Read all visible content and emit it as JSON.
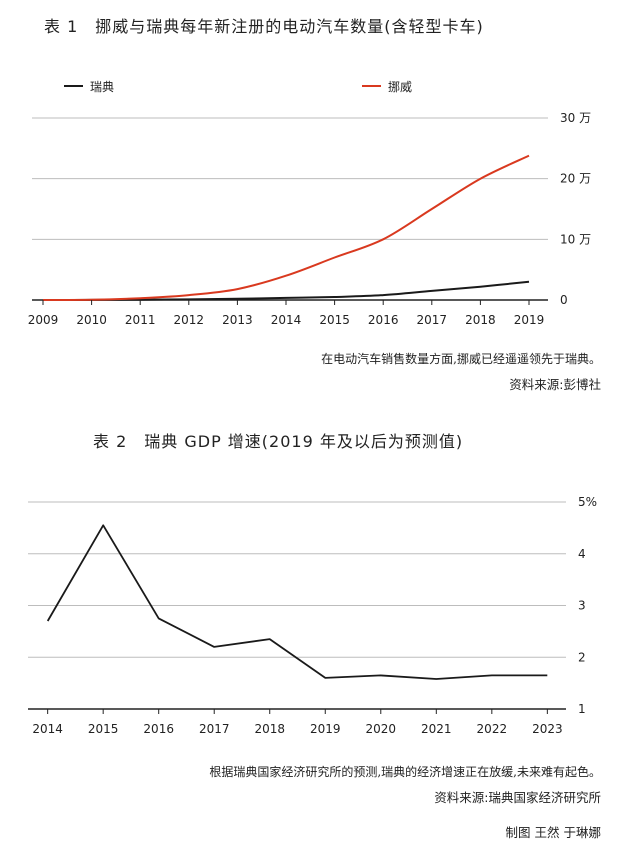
{
  "chart_data": [
    {
      "type": "line",
      "title": "表 1　挪威与瑞典每年新注册的电动汽车数量(含轻型卡车)",
      "x": [
        2009,
        2010,
        2011,
        2012,
        2013,
        2014,
        2015,
        2016,
        2017,
        2018,
        2019
      ],
      "xlim": [
        2009,
        2019
      ],
      "ylim": [
        0,
        300000
      ],
      "y_ticks": [
        0,
        100000,
        200000,
        300000
      ],
      "y_tick_labels": [
        "0",
        "10 万",
        "20 万",
        "30 万"
      ],
      "legend_position": "top",
      "series": [
        {
          "name": "瑞典",
          "color": "#1a1a1a",
          "values": [
            0,
            100,
            500,
            1000,
            2000,
            3500,
            5000,
            8000,
            15000,
            22000,
            30000
          ]
        },
        {
          "name": "挪威",
          "color": "#d9391f",
          "values": [
            0,
            500,
            3000,
            8000,
            18000,
            40000,
            70000,
            100000,
            150000,
            200000,
            238000
          ]
        }
      ],
      "note": "在电动汽车销售数量方面,挪威已经遥遥领先于瑞典。",
      "source": "资料来源:彭博社"
    },
    {
      "type": "line",
      "title": "表 2　瑞典 GDP 增速(2019 年及以后为预测值)",
      "x": [
        2014,
        2015,
        2016,
        2017,
        2018,
        2019,
        2020,
        2021,
        2022,
        2023
      ],
      "xlim": [
        2013.7,
        2023.3
      ],
      "ylim": [
        1,
        5
      ],
      "y_ticks": [
        1,
        2,
        3,
        4,
        5
      ],
      "y_tick_labels": [
        "1",
        "2",
        "3",
        "4",
        "5%"
      ],
      "series": [
        {
          "name": "瑞典 GDP 增速",
          "color": "#1a1a1a",
          "values": [
            2.7,
            4.55,
            2.75,
            2.2,
            2.35,
            1.6,
            1.65,
            1.58,
            1.65,
            1.65
          ]
        }
      ],
      "note": "根据瑞典国家经济研究所的预测,瑞典的经济增速正在放缓,未来难有起色。",
      "source": "资料来源:瑞典国家经济研究所"
    }
  ],
  "credit": "制图 王然 于琳娜"
}
